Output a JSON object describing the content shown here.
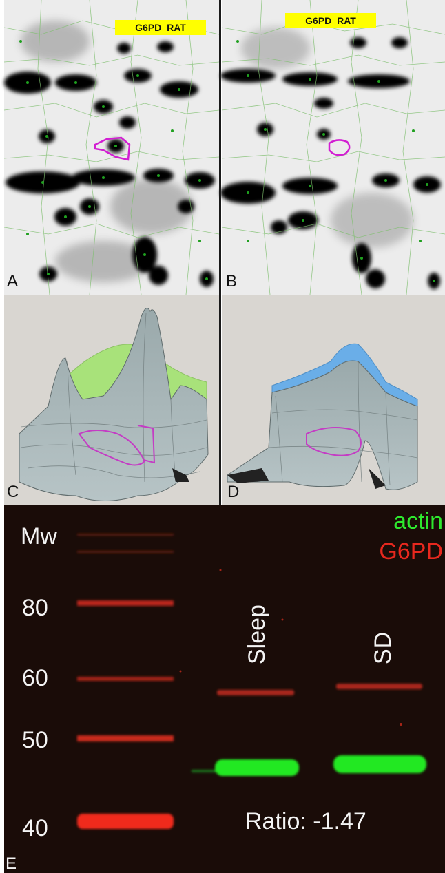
{
  "panels": {
    "A": {
      "letter": "A",
      "tag": "G6PD_RAT"
    },
    "B": {
      "letter": "B",
      "tag": "G6PD_RAT"
    },
    "C": {
      "letter": "C"
    },
    "D": {
      "letter": "D"
    },
    "E": {
      "letter": "E"
    }
  },
  "blot": {
    "mw_header": "Mw",
    "markers": [
      "80",
      "60",
      "50",
      "40"
    ],
    "lanes": [
      "Sleep",
      "SD"
    ],
    "legend": [
      {
        "label": "actin",
        "color": "#2ee82e"
      },
      {
        "label": "G6PD",
        "color": "#e8281e"
      }
    ],
    "ratio": "Ratio: -1.47"
  },
  "colors": {
    "spot_outline": "#d21ed2",
    "surface_green": "#a8e27a",
    "surface_blue": "#6aaee8",
    "tag_bg": "#ffff00",
    "blot_bg": "#1a0c08"
  }
}
